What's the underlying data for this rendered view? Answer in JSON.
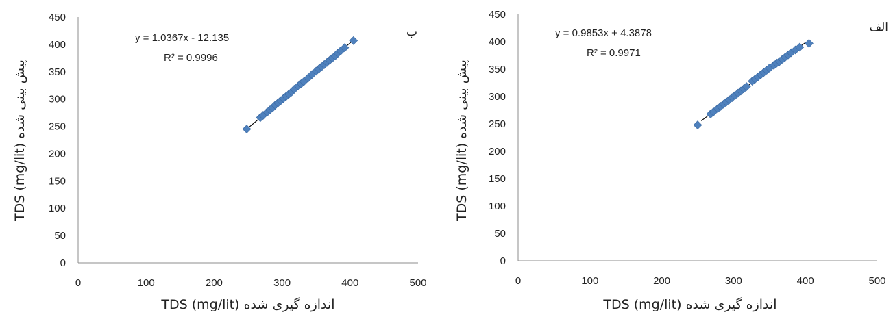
{
  "chart_data": [
    {
      "type": "scatter",
      "panel_label": "ب",
      "xlabel": "اندازه گیری شده TDS (mg/lit)",
      "ylabel": "پیش بینی شده TDS (mg/lit)",
      "xlim": [
        0,
        500
      ],
      "ylim": [
        0,
        450
      ],
      "xticks": [
        "0",
        "100",
        "200",
        "300",
        "400",
        "500"
      ],
      "yticks": [
        "0",
        "50",
        "100",
        "150",
        "200",
        "250",
        "300",
        "350",
        "400",
        "450"
      ],
      "equation": "y = 1.0367x - 12.135",
      "r2": "R² = 0.9996",
      "trendline": {
        "slope": 1.0367,
        "intercept": -12.135,
        "x_range": [
          248,
          405
        ]
      },
      "x": [
        248,
        268,
        272,
        278,
        282,
        286,
        290,
        294,
        298,
        302,
        306,
        310,
        314,
        318,
        324,
        328,
        332,
        338,
        344,
        350,
        354,
        358,
        362,
        366,
        370,
        374,
        378,
        382,
        386,
        392,
        405
      ],
      "y": [
        245,
        266,
        270,
        276,
        280,
        284,
        289,
        293,
        297,
        301,
        305,
        309,
        313,
        318,
        324,
        328,
        332,
        338,
        345,
        351,
        355,
        359,
        363,
        367,
        371,
        375,
        379,
        384,
        388,
        394,
        407
      ]
    },
    {
      "type": "scatter",
      "panel_label": "الف",
      "xlabel": "اندازه گیری شده TDS (mg/lit)",
      "ylabel": "پیش بینی شده TDS (mg/lit)",
      "xlim": [
        0,
        500
      ],
      "ylim": [
        0,
        450
      ],
      "xticks": [
        "0",
        "100",
        "200",
        "300",
        "400",
        "500"
      ],
      "yticks": [
        "0",
        "50",
        "100",
        "150",
        "200",
        "250",
        "300",
        "350",
        "400",
        "450"
      ],
      "equation": "y = 0.9853x + 4.3878",
      "r2": "R² = 0.9971",
      "trendline": {
        "slope": 0.9853,
        "intercept": 4.3878,
        "x_range": [
          255,
          400
        ]
      },
      "x": [
        250,
        268,
        272,
        278,
        282,
        286,
        290,
        294,
        298,
        302,
        306,
        310,
        314,
        318,
        326,
        330,
        334,
        338,
        342,
        346,
        350,
        356,
        360,
        364,
        368,
        372,
        376,
        380,
        386,
        392,
        405
      ],
      "y": [
        248,
        268,
        272,
        278,
        282,
        286,
        290,
        294,
        298,
        302,
        306,
        310,
        314,
        318,
        328,
        332,
        336,
        340,
        344,
        348,
        352,
        357,
        361,
        364,
        368,
        372,
        376,
        380,
        385,
        390,
        397
      ]
    }
  ]
}
